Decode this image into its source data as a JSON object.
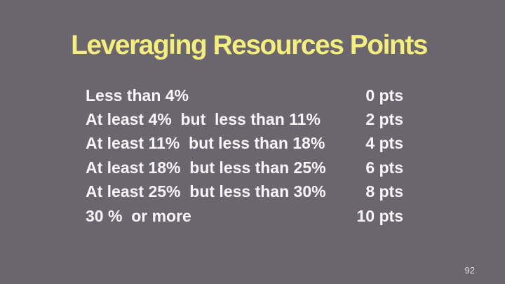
{
  "slide": {
    "title": "Leveraging Resources Points",
    "page_number": "92",
    "colors": {
      "background": "#69666f",
      "title_text": "#f4ee7c",
      "body_text": "#f8f6f8",
      "page_number_text": "#dcdcdc"
    },
    "table": {
      "rows": [
        {
          "range": "Less than 4%",
          "points": "0 pts"
        },
        {
          "range": "At least 4%  but  less than 11%",
          "points": "2 pts"
        },
        {
          "range": "At least 11%  but less than 18%",
          "points": "4 pts"
        },
        {
          "range": "At least 18%  but less than 25%",
          "points": "6 pts"
        },
        {
          "range": "At least 25%  but less than 30%",
          "points": "8 pts"
        },
        {
          "range": "30 %  or more",
          "points": "10 pts"
        }
      ]
    }
  }
}
